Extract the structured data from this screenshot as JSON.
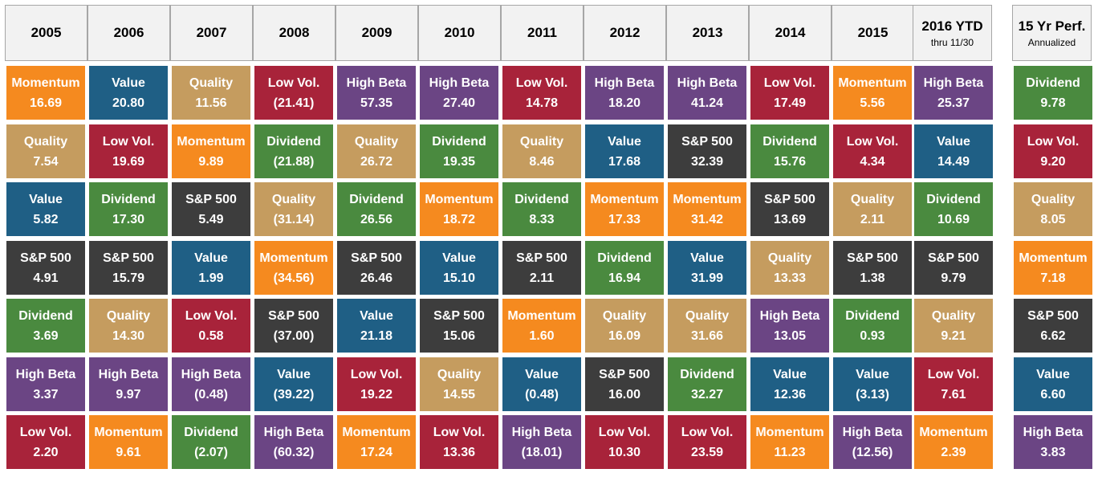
{
  "chart_data": {
    "type": "table",
    "columns": [
      {
        "title": "2005",
        "subtitle": ""
      },
      {
        "title": "2006",
        "subtitle": ""
      },
      {
        "title": "2007",
        "subtitle": ""
      },
      {
        "title": "2008",
        "subtitle": ""
      },
      {
        "title": "2009",
        "subtitle": ""
      },
      {
        "title": "2010",
        "subtitle": ""
      },
      {
        "title": "2011",
        "subtitle": ""
      },
      {
        "title": "2012",
        "subtitle": ""
      },
      {
        "title": "2013",
        "subtitle": ""
      },
      {
        "title": "2014",
        "subtitle": ""
      },
      {
        "title": "2015",
        "subtitle": ""
      },
      {
        "title": "2016 YTD",
        "subtitle": "thru 11/30"
      },
      {
        "title": "15 Yr Perf.",
        "subtitle": "Annualized"
      }
    ],
    "factor_colors": {
      "Momentum": "#f58a1f",
      "Value": "#1f5f85",
      "Quality": "#c59c5f",
      "Low Vol.": "#a8233a",
      "High Beta": "#6b4584",
      "Dividend": "#4a8a3f",
      "S&P 500": "#3d3d3d"
    },
    "cells": [
      [
        {
          "name": "Momentum",
          "value": "16.69"
        },
        {
          "name": "Quality",
          "value": "7.54"
        },
        {
          "name": "Value",
          "value": "5.82"
        },
        {
          "name": "S&P 500",
          "value": "4.91"
        },
        {
          "name": "Dividend",
          "value": "3.69"
        },
        {
          "name": "High Beta",
          "value": "3.37"
        },
        {
          "name": "Low Vol.",
          "value": "2.20"
        }
      ],
      [
        {
          "name": "Value",
          "value": "20.80"
        },
        {
          "name": "Low Vol.",
          "value": "19.69"
        },
        {
          "name": "Dividend",
          "value": "17.30"
        },
        {
          "name": "S&P 500",
          "value": "15.79"
        },
        {
          "name": "Quality",
          "value": "14.30"
        },
        {
          "name": "High Beta",
          "value": "9.97"
        },
        {
          "name": "Momentum",
          "value": "9.61"
        }
      ],
      [
        {
          "name": "Quality",
          "value": "11.56"
        },
        {
          "name": "Momentum",
          "value": "9.89"
        },
        {
          "name": "S&P 500",
          "value": "5.49"
        },
        {
          "name": "Value",
          "value": "1.99"
        },
        {
          "name": "Low Vol.",
          "value": "0.58"
        },
        {
          "name": "High Beta",
          "value": "(0.48)"
        },
        {
          "name": "Dividend",
          "value": "(2.07)"
        }
      ],
      [
        {
          "name": "Low Vol.",
          "value": "(21.41)"
        },
        {
          "name": "Dividend",
          "value": "(21.88)"
        },
        {
          "name": "Quality",
          "value": "(31.14)"
        },
        {
          "name": "Momentum",
          "value": "(34.56)"
        },
        {
          "name": "S&P 500",
          "value": "(37.00)"
        },
        {
          "name": "Value",
          "value": "(39.22)"
        },
        {
          "name": "High Beta",
          "value": "(60.32)"
        }
      ],
      [
        {
          "name": "High Beta",
          "value": "57.35"
        },
        {
          "name": "Quality",
          "value": "26.72"
        },
        {
          "name": "Dividend",
          "value": "26.56"
        },
        {
          "name": "S&P 500",
          "value": "26.46"
        },
        {
          "name": "Value",
          "value": "21.18"
        },
        {
          "name": "Low Vol.",
          "value": "19.22"
        },
        {
          "name": "Momentum",
          "value": "17.24"
        }
      ],
      [
        {
          "name": "High Beta",
          "value": "27.40"
        },
        {
          "name": "Dividend",
          "value": "19.35"
        },
        {
          "name": "Momentum",
          "value": "18.72"
        },
        {
          "name": "Value",
          "value": "15.10"
        },
        {
          "name": "S&P 500",
          "value": "15.06"
        },
        {
          "name": "Quality",
          "value": "14.55"
        },
        {
          "name": "Low Vol.",
          "value": "13.36"
        }
      ],
      [
        {
          "name": "Low Vol.",
          "value": "14.78"
        },
        {
          "name": "Quality",
          "value": "8.46"
        },
        {
          "name": "Dividend",
          "value": "8.33"
        },
        {
          "name": "S&P 500",
          "value": "2.11"
        },
        {
          "name": "Momentum",
          "value": "1.60"
        },
        {
          "name": "Value",
          "value": "(0.48)"
        },
        {
          "name": "High Beta",
          "value": "(18.01)"
        }
      ],
      [
        {
          "name": "High Beta",
          "value": "18.20"
        },
        {
          "name": "Value",
          "value": "17.68"
        },
        {
          "name": "Momentum",
          "value": "17.33"
        },
        {
          "name": "Dividend",
          "value": "16.94"
        },
        {
          "name": "Quality",
          "value": "16.09"
        },
        {
          "name": "S&P 500",
          "value": "16.00"
        },
        {
          "name": "Low Vol.",
          "value": "10.30"
        }
      ],
      [
        {
          "name": "High Beta",
          "value": "41.24"
        },
        {
          "name": "S&P 500",
          "value": "32.39"
        },
        {
          "name": "Momentum",
          "value": "31.42"
        },
        {
          "name": "Value",
          "value": "31.99"
        },
        {
          "name": "Quality",
          "value": "31.66"
        },
        {
          "name": "Dividend",
          "value": "32.27"
        },
        {
          "name": "Low Vol.",
          "value": "23.59"
        }
      ],
      [
        {
          "name": "Low Vol.",
          "value": "17.49"
        },
        {
          "name": "Dividend",
          "value": "15.76"
        },
        {
          "name": "S&P 500",
          "value": "13.69"
        },
        {
          "name": "Quality",
          "value": "13.33"
        },
        {
          "name": "High Beta",
          "value": "13.05"
        },
        {
          "name": "Value",
          "value": "12.36"
        },
        {
          "name": "Momentum",
          "value": "11.23"
        }
      ],
      [
        {
          "name": "Momentum",
          "value": "5.56"
        },
        {
          "name": "Low Vol.",
          "value": "4.34"
        },
        {
          "name": "Quality",
          "value": "2.11"
        },
        {
          "name": "S&P 500",
          "value": "1.38"
        },
        {
          "name": "Dividend",
          "value": "0.93"
        },
        {
          "name": "Value",
          "value": "(3.13)"
        },
        {
          "name": "High Beta",
          "value": "(12.56)"
        }
      ],
      [
        {
          "name": "High Beta",
          "value": "25.37"
        },
        {
          "name": "Value",
          "value": "14.49"
        },
        {
          "name": "Dividend",
          "value": "10.69"
        },
        {
          "name": "S&P 500",
          "value": "9.79"
        },
        {
          "name": "Quality",
          "value": "9.21"
        },
        {
          "name": "Low Vol.",
          "value": "7.61"
        },
        {
          "name": "Momentum",
          "value": "2.39"
        }
      ],
      [
        {
          "name": "Dividend",
          "value": "9.78"
        },
        {
          "name": "Low Vol.",
          "value": "9.20"
        },
        {
          "name": "Quality",
          "value": "8.05"
        },
        {
          "name": "Momentum",
          "value": "7.18"
        },
        {
          "name": "S&P 500",
          "value": "6.62"
        },
        {
          "name": "Value",
          "value": "6.60"
        },
        {
          "name": "High Beta",
          "value": "3.83"
        }
      ]
    ]
  }
}
